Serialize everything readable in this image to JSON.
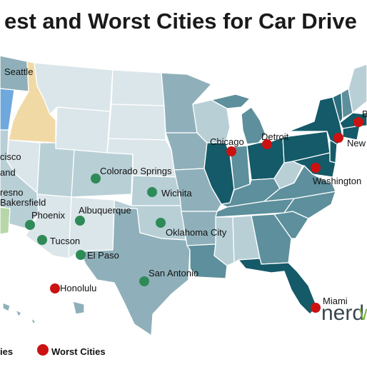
{
  "title": "est and Worst Cities for Car Drive",
  "colors": {
    "best_dot": "#2e8b57",
    "worst_dot": "#cc1111",
    "tier1": "#dbe6ea",
    "tier2": "#b8cfd6",
    "tier3": "#8fb0ba",
    "tier4": "#5d8f9c",
    "tier5": "#2d6e7e",
    "tier6": "#145a68",
    "blue_state": "#6fa8dc",
    "tan_state": "#f1d9a6",
    "green_state": "#b7d7a8"
  },
  "cities": {
    "seattle": "Seattle",
    "san_francisco": "cisco",
    "oakland": "and",
    "fresno": "resno",
    "bakersfield": "Bakersfield",
    "phoenix": "Phoenix",
    "tucson": "Tucson",
    "albuquerque": "Albuquerque",
    "el_paso": "El Paso",
    "colorado_springs": "Colorado Springs",
    "wichita": "Wichita",
    "oklahoma_city": "Oklahoma City",
    "san_antonio": "San Antonio",
    "honolulu": "Honolulu",
    "chicago": "Chicago",
    "detroit": "Detroit",
    "washington": "Washington",
    "new_york": "New",
    "boston": "B",
    "miami": "Miami"
  },
  "legend": {
    "best_label": "ies",
    "worst_label": "Worst Cities"
  },
  "brand": {
    "part1": "nerd",
    "part2": "w"
  }
}
